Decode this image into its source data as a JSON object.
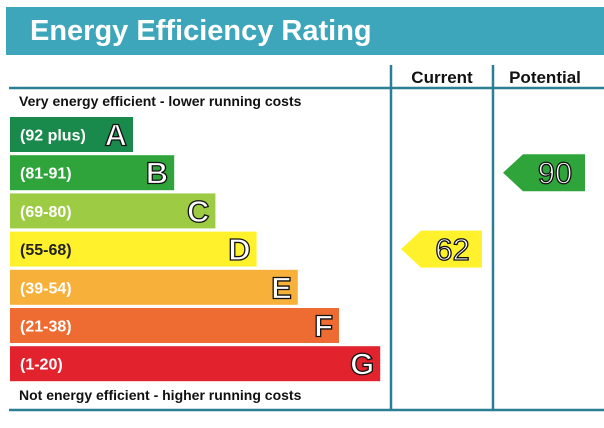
{
  "header": {
    "title": "Energy Efficiency Rating"
  },
  "columns": {
    "current": "Current",
    "potential": "Potential"
  },
  "notes": {
    "top": "Very energy efficient - lower running costs",
    "bottom": "Not energy efficient - higher running costs"
  },
  "chart_data": {
    "type": "bar",
    "title": "Energy Efficiency Rating",
    "categories": [
      "(92 plus)",
      "(81-91)",
      "(69-80)",
      "(55-68)",
      "(39-54)",
      "(21-38)",
      "(1-20)"
    ],
    "bands": [
      {
        "range": "(92 plus)",
        "letter": "A",
        "color": "#1a8a4c"
      },
      {
        "range": "(81-91)",
        "letter": "B",
        "color": "#2ea43a"
      },
      {
        "range": "(69-80)",
        "letter": "C",
        "color": "#9dcb44"
      },
      {
        "range": "(55-68)",
        "letter": "D",
        "color": "#fff22d"
      },
      {
        "range": "(39-54)",
        "letter": "E",
        "color": "#f7b13b"
      },
      {
        "range": "(21-38)",
        "letter": "F",
        "color": "#ee6b32"
      },
      {
        "range": "(1-20)",
        "letter": "G",
        "color": "#e2222d"
      }
    ],
    "current": {
      "value": 62,
      "band": "D",
      "color": "#fff22d"
    },
    "potential": {
      "value": 90,
      "band": "B",
      "color": "#2ea43a"
    }
  }
}
